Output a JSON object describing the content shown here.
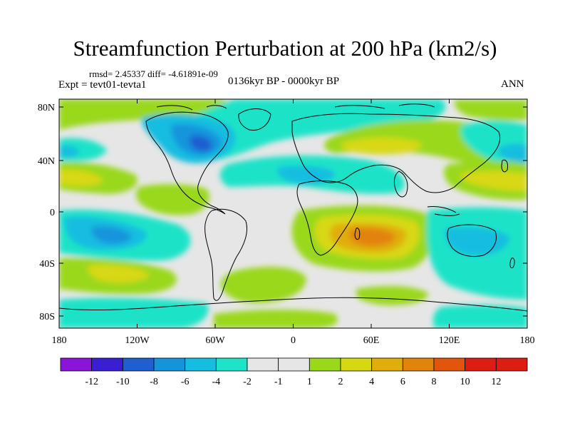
{
  "title": "Streamfunction Perturbation at 200 hPa (km2/s)",
  "stats_text": "rmsd= 2.45337 diff= -4.61891e-09",
  "experiment": "Expt = tevt01-tevta1",
  "period": "0136kyr BP - 0000kyr BP",
  "season": "ANN",
  "map": {
    "lat_ticks": [
      "80N",
      "40N",
      "0",
      "40S",
      "80S"
    ],
    "lon_ticks": [
      "180",
      "120W",
      "60W",
      "0",
      "60E",
      "120E",
      "180"
    ]
  },
  "colors": {
    "n12": "#8a14d8",
    "n10": "#3a1fd2",
    "n8": "#1f5fd0",
    "n6": "#1594dc",
    "n4": "#15bde0",
    "n2": "#1ee3c8",
    "zero": "#e6e6e6",
    "p2": "#9ad81a",
    "p4": "#d8d812",
    "p6": "#e0ad0c",
    "p8": "#e2830c",
    "p10": "#e2560c",
    "p12": "#dc1e12"
  },
  "colorbar": {
    "labels": [
      "-12",
      "-10",
      "-8",
      "-6",
      "-4",
      "-2",
      "-1",
      "1",
      "2",
      "4",
      "6",
      "8",
      "10",
      "12"
    ]
  }
}
